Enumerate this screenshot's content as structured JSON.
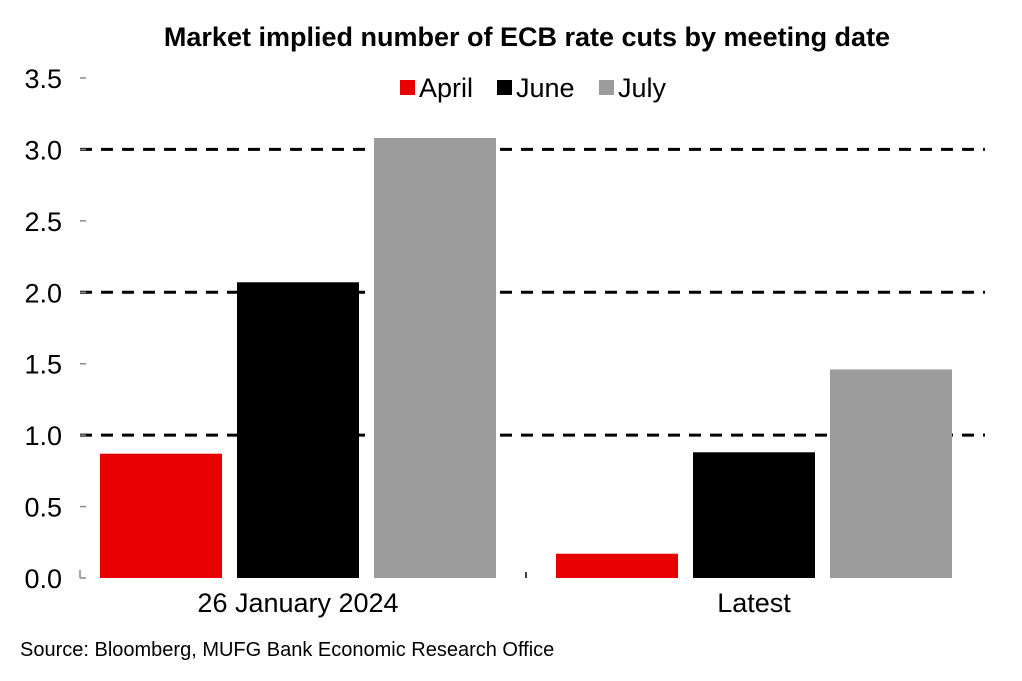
{
  "chart_data": {
    "type": "bar",
    "title": "Market implied number of ECB rate cuts by meeting date",
    "xlabel": "",
    "ylabel": "",
    "categories": [
      "26 January 2024",
      "Latest"
    ],
    "series": [
      {
        "name": "April",
        "color": "#e60000",
        "values": [
          0.87,
          0.17
        ]
      },
      {
        "name": "June",
        "color": "#000000",
        "values": [
          2.07,
          0.88
        ]
      },
      {
        "name": "July",
        "color": "#9c9c9c",
        "values": [
          3.08,
          1.46
        ]
      }
    ],
    "ylim": [
      0,
      3.5
    ],
    "yticks": [
      0.0,
      0.5,
      1.0,
      1.5,
      2.0,
      2.5,
      3.0,
      3.5
    ],
    "ytick_labels": [
      "0.0",
      "0.5",
      "1.0",
      "1.5",
      "2.0",
      "2.5",
      "3.0",
      "3.5"
    ],
    "gridlines": {
      "style": "dashed",
      "values": [
        1.0,
        2.0,
        3.0
      ]
    },
    "legend": {
      "placement": "top-center",
      "entries": [
        "April",
        "June",
        "July"
      ]
    },
    "source": "Source: Bloomberg, MUFG Bank Economic Research Office"
  }
}
